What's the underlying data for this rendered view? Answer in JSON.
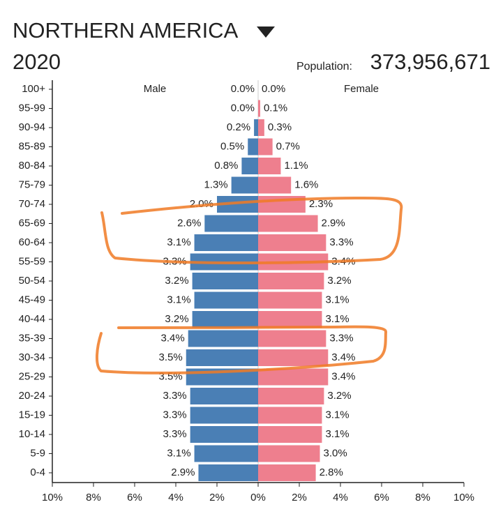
{
  "chart_data": {
    "type": "pyramid",
    "title": "NORTHERN AMERICA",
    "subtitle": "2020",
    "population_label": "Population:",
    "population": "373,956,671",
    "categories": [
      "100+",
      "95-99",
      "90-94",
      "85-89",
      "80-84",
      "75-79",
      "70-74",
      "65-69",
      "60-64",
      "55-59",
      "50-54",
      "45-49",
      "40-44",
      "35-39",
      "30-34",
      "25-29",
      "20-24",
      "15-19",
      "10-14",
      "5-9",
      "0-4"
    ],
    "series": [
      {
        "name": "Male",
        "color": "#4a7fb5",
        "side": "left",
        "values": [
          0.0,
          0.0,
          0.2,
          0.5,
          0.8,
          1.3,
          2.0,
          2.6,
          3.1,
          3.3,
          3.2,
          3.1,
          3.2,
          3.4,
          3.5,
          3.5,
          3.3,
          3.3,
          3.3,
          3.1,
          2.9
        ],
        "value_labels": [
          "0.0%",
          "0.0%",
          "0.2%",
          "0.5%",
          "0.8%",
          "1.3%",
          "2.0%",
          "2.6%",
          "3.1%",
          "3.3%",
          "3.2%",
          "3.1%",
          "3.2%",
          "3.4%",
          "3.5%",
          "3.5%",
          "3.3%",
          "3.3%",
          "3.3%",
          "3.1%",
          "2.9%"
        ]
      },
      {
        "name": "Female",
        "color": "#ee7f8e",
        "side": "right",
        "values": [
          0.0,
          0.1,
          0.3,
          0.7,
          1.1,
          1.6,
          2.3,
          2.9,
          3.3,
          3.4,
          3.2,
          3.1,
          3.1,
          3.3,
          3.4,
          3.4,
          3.2,
          3.1,
          3.1,
          3.0,
          2.8
        ],
        "value_labels": [
          "0.0%",
          "0.1%",
          "0.3%",
          "0.7%",
          "1.1%",
          "1.6%",
          "2.3%",
          "2.9%",
          "3.3%",
          "3.4%",
          "3.2%",
          "3.1%",
          "3.1%",
          "3.3%",
          "3.4%",
          "3.4%",
          "3.2%",
          "3.1%",
          "3.1%",
          "3.0%",
          "2.8%"
        ]
      }
    ],
    "xlim": [
      -10,
      10
    ],
    "xticks": [
      {
        "value": -10,
        "label": "10%"
      },
      {
        "value": -8,
        "label": "8%"
      },
      {
        "value": -6,
        "label": "6%"
      },
      {
        "value": -4,
        "label": "4%"
      },
      {
        "value": -2,
        "label": "2%"
      },
      {
        "value": 0,
        "label": "0%"
      },
      {
        "value": 2,
        "label": "2%"
      },
      {
        "value": 4,
        "label": "4%"
      },
      {
        "value": 6,
        "label": "6%"
      },
      {
        "value": 8,
        "label": "8%"
      },
      {
        "value": 10,
        "label": "10%"
      }
    ]
  }
}
